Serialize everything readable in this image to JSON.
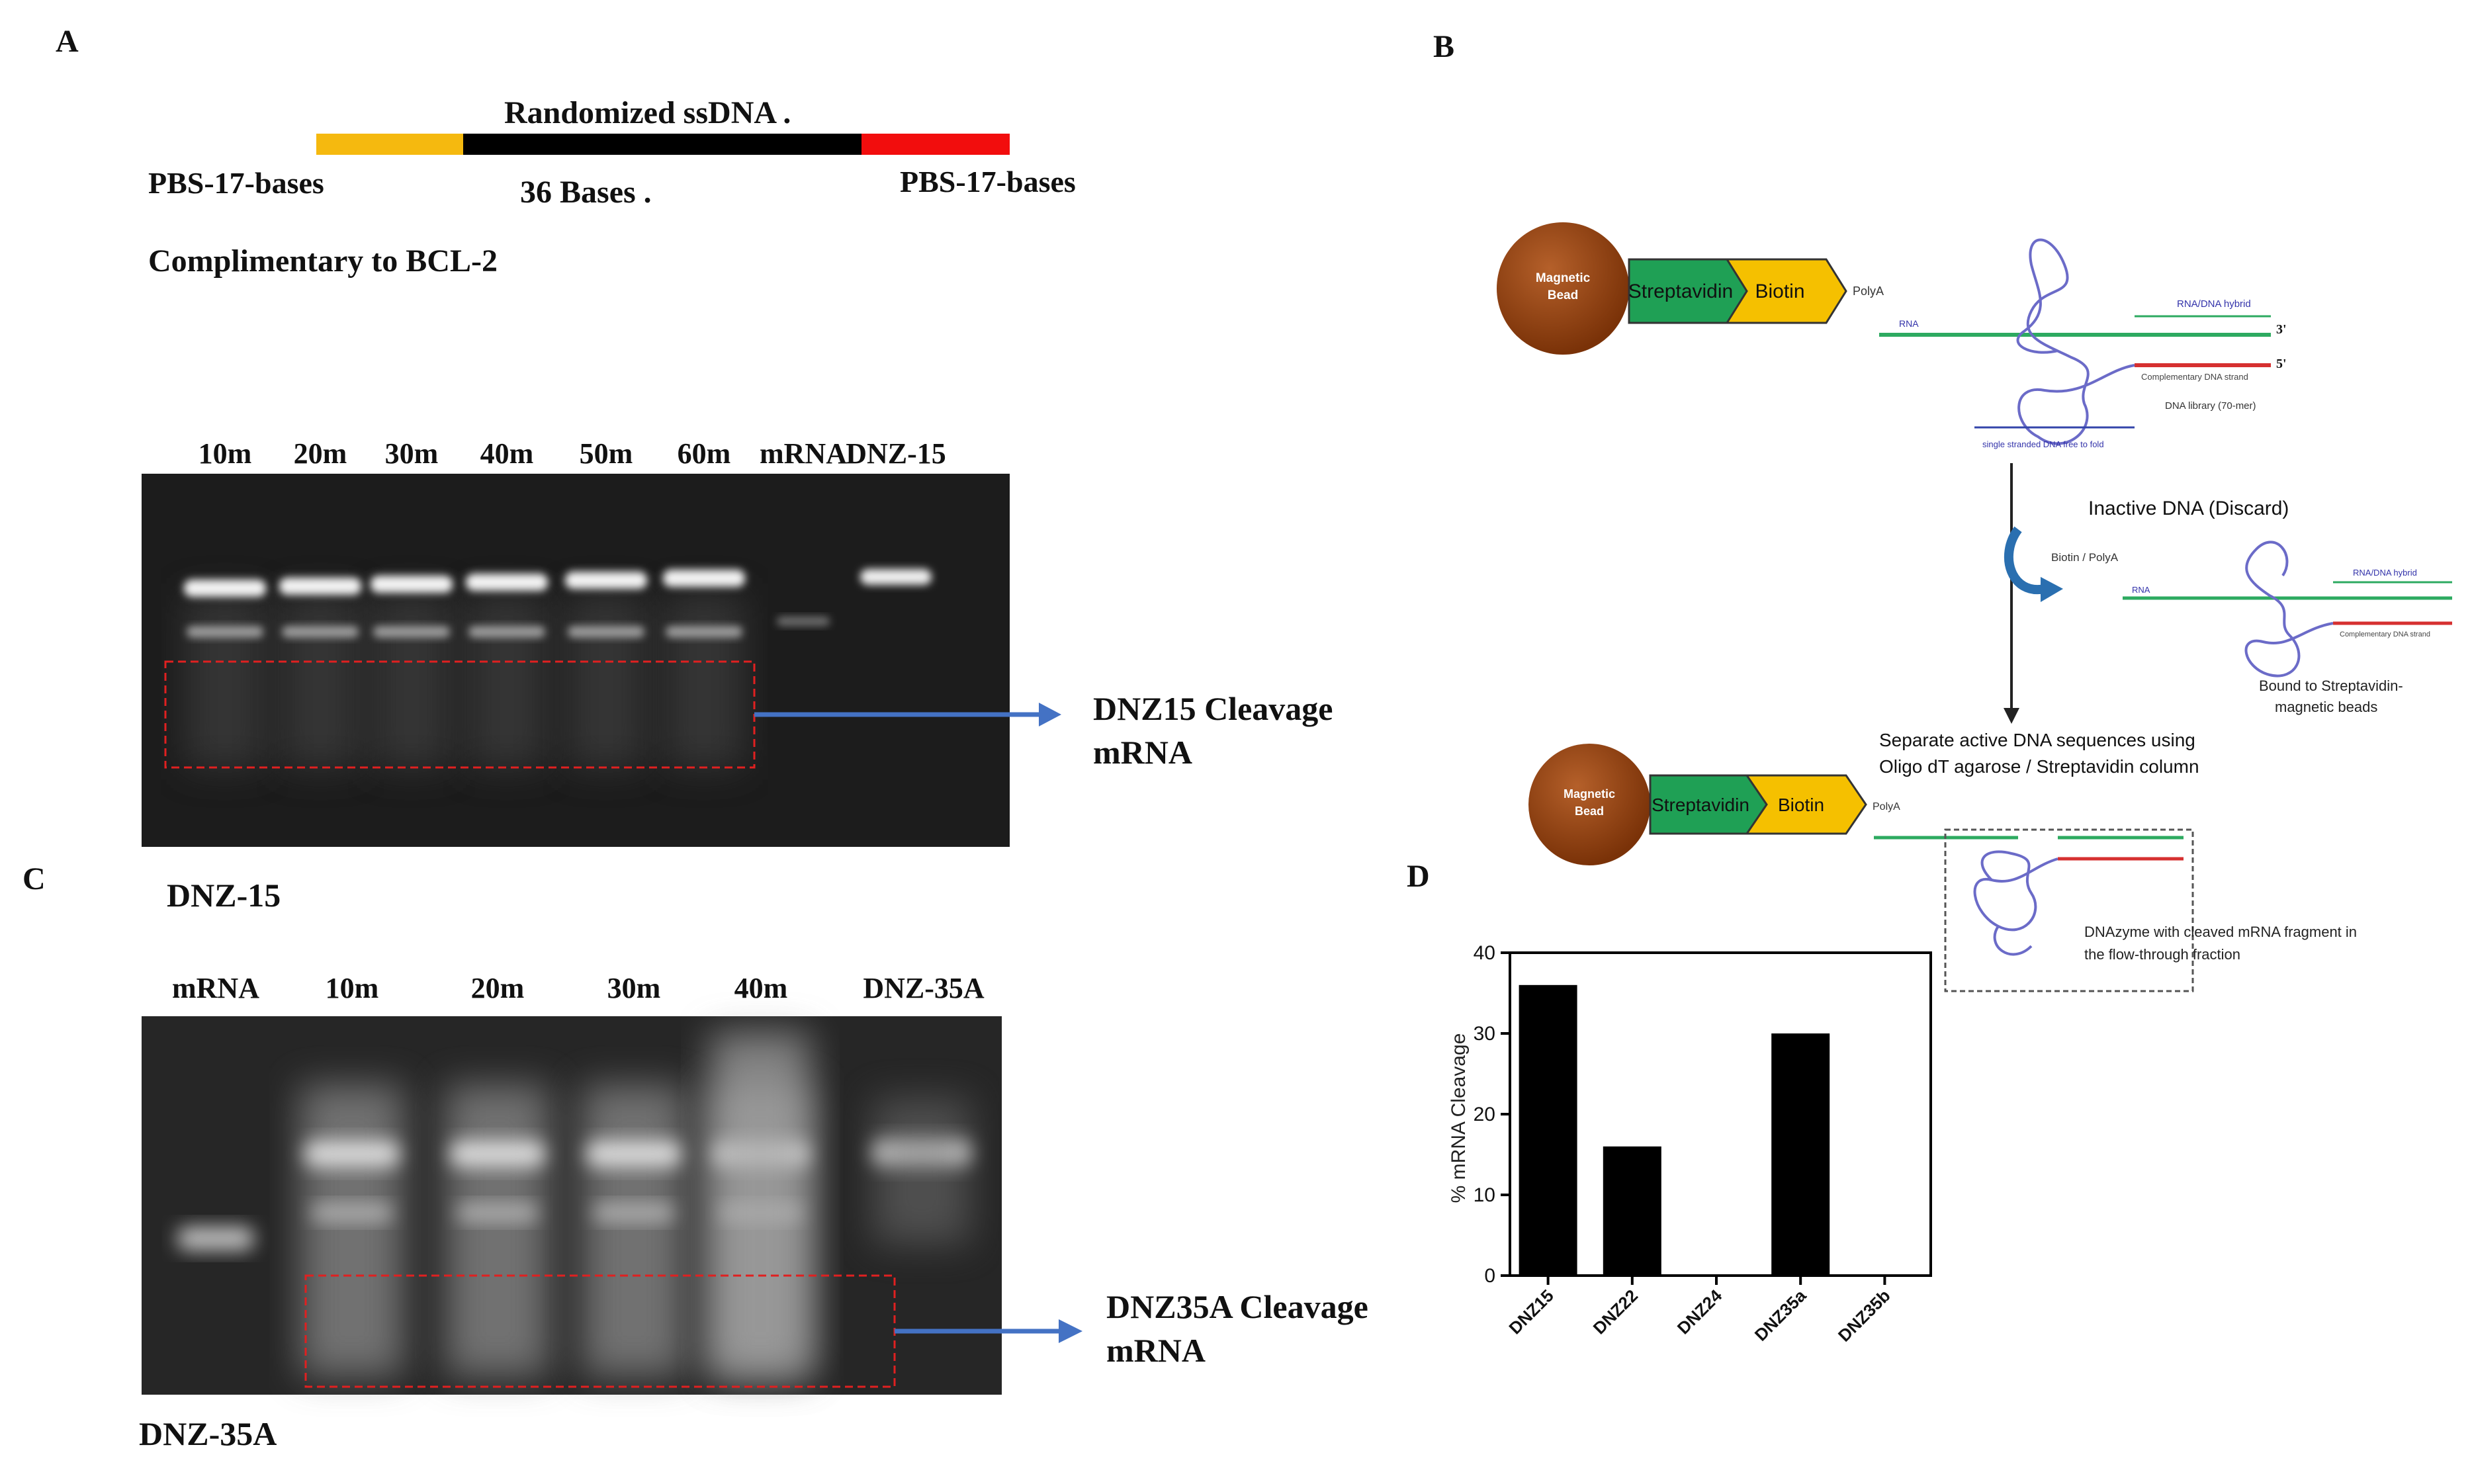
{
  "panels": {
    "A": {
      "letter": "A",
      "construct": {
        "title": "Randomized  ssDNA .",
        "left_label": "PBS-17-bases",
        "middle_label": "36 Bases .",
        "right_label": "PBS-17-bases",
        "note": "Complimentary to BCL-2",
        "colors": {
          "left": "#F5B90F",
          "middle": "#000000",
          "right": "#F20D0D"
        }
      },
      "gel": {
        "lane_labels": [
          "10m",
          "20m",
          "30m",
          "40m",
          "50m",
          "60m",
          "mRNA",
          "DNZ-15"
        ],
        "annotation": [
          "DNZ15 Cleavage",
          "mRNA"
        ],
        "caption": "DNZ-15"
      }
    },
    "B": {
      "letter": "B",
      "bead_label": [
        "Magnetic",
        "Bead"
      ],
      "streptavidin": "Streptavidin",
      "biotin": "Biotin",
      "polya": "PolyA",
      "rna": "RNA",
      "hybrid": "RNA/DNA hybrid",
      "three_prime": "3'",
      "five_prime": "5'",
      "complementary": "Complementary DNA strand",
      "library": "DNA library (70-mer)",
      "single_strand": "single stranded DNA free to fold",
      "inactive": "Inactive DNA (Discard)",
      "biotin_polya": "Biotin / PolyA",
      "bound": [
        "Bound to Streptavidin-",
        "magnetic beads"
      ],
      "separate": [
        "Separate active DNA sequences using",
        "Oligo dT agarose / Streptavidin column"
      ],
      "dnazyme": [
        "DNAzyme with cleaved mRNA fragment in",
        "the flow-through fraction"
      ],
      "colors": {
        "bead": "#8B3A0F",
        "streptavidin": "#1FA055",
        "biotin": "#F5C000",
        "rna": "#2DAA60",
        "dna": "#D63030",
        "loop": "#6B6BC8"
      }
    },
    "C": {
      "letter": "C",
      "gel": {
        "lane_labels": [
          "mRNA",
          "10m",
          "20m",
          "30m",
          "40m",
          "DNZ-35A"
        ],
        "annotation": [
          "DNZ35A Cleavage",
          "mRNA"
        ],
        "caption": "DNZ-35A"
      }
    },
    "D": {
      "letter": "D"
    }
  },
  "arrow_color": "#4472C4",
  "box_color": "#E02020",
  "chart_data": {
    "type": "bar",
    "categories": [
      "DNZ15",
      "DNZ22",
      "DNZ24",
      "DNZ35a",
      "DNZ35b"
    ],
    "values": [
      36,
      16,
      0,
      30,
      0
    ],
    "ylabel": "% mRNA Cleavage",
    "ylim": [
      0,
      40
    ],
    "yticks": [
      0,
      10,
      20,
      30,
      40
    ],
    "grid": false,
    "bar_color": "#000000"
  }
}
